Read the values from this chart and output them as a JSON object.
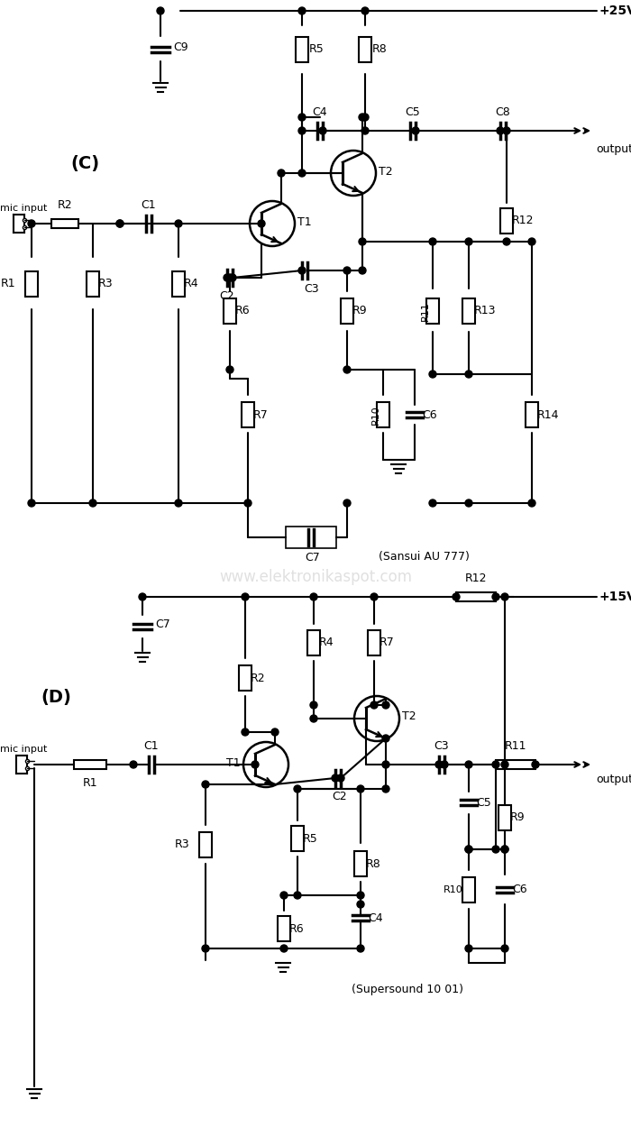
{
  "bg_color": "#ffffff",
  "line_color": "#000000",
  "dot_color": "#000000",
  "text_color": "#000000",
  "fig_width": 7.0,
  "fig_height": 12.6,
  "circuit_C_label": "(C)",
  "circuit_D_label": "(D)",
  "supply_C": "+25V",
  "supply_D": "+15V",
  "circuit_C_name": "(Sansui AU 777)",
  "circuit_D_name": "(Supersound 10 01)",
  "watermark": "www.elektronikaspot.com"
}
